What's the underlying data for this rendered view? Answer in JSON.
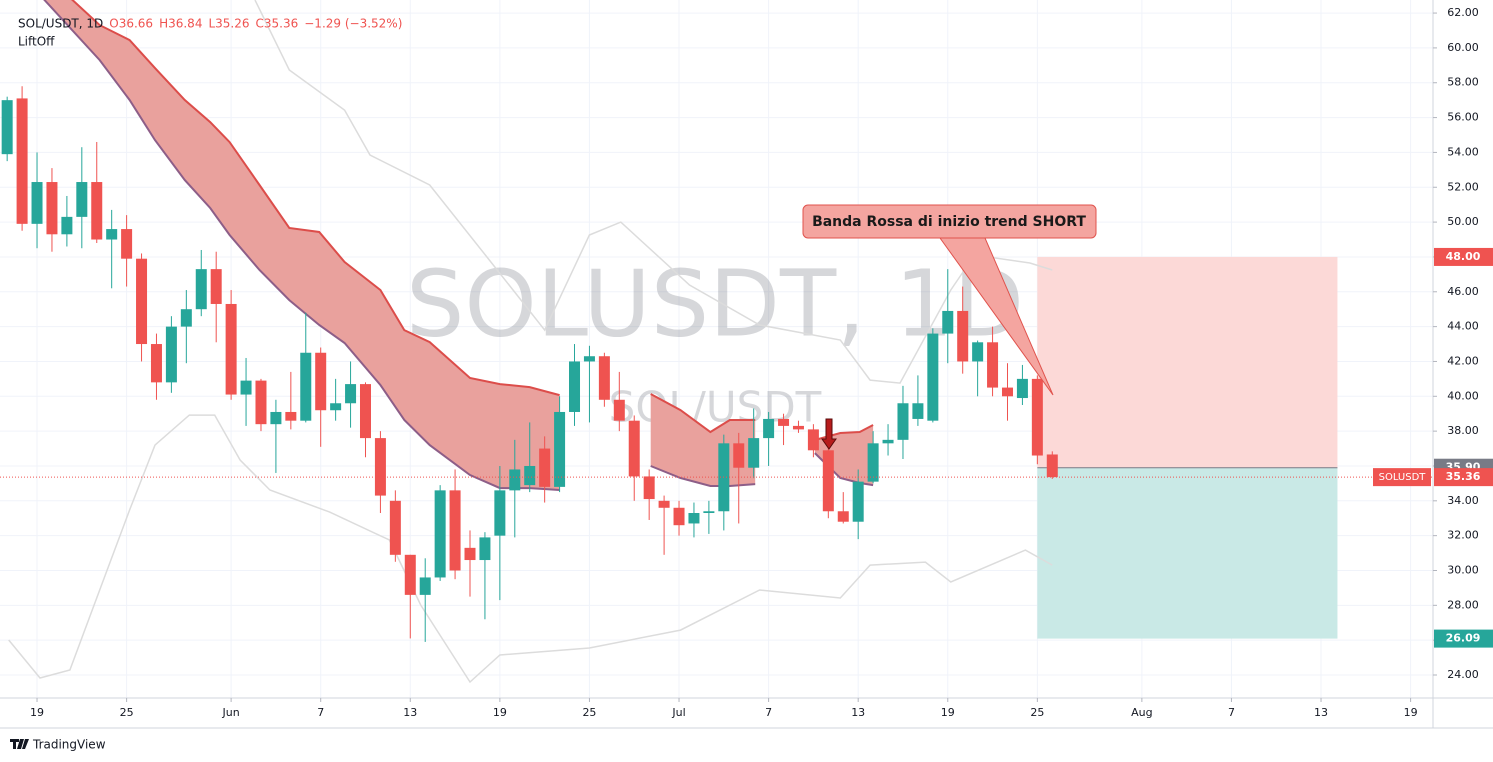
{
  "chart_data": {
    "type": "candlestick",
    "title": "SOL/USDT, 1D",
    "header": [
      "O36.66",
      "H36.84",
      "L35.26",
      "C35.36",
      "−1.29 (−3.52%)"
    ],
    "indicator": "LiftOff",
    "watermark": "SOLUSDT, 1D",
    "watermark_2": "SOL/USDT",
    "annotation": "Banda Rossa di inizio trend SHORT",
    "footer": "TradingView",
    "up_color": "#26a69a",
    "down_color": "#ef5350",
    "grid": true,
    "xlim": [
      -2.48,
      93.5
    ],
    "ylim": [
      22.68,
      62.75
    ],
    "xticks": [
      {
        "value": 0,
        "label": "19"
      },
      {
        "value": 6,
        "label": "25"
      },
      {
        "value": 13,
        "label": "Jun"
      },
      {
        "value": 19,
        "label": "7"
      },
      {
        "value": 25,
        "label": "13"
      },
      {
        "value": 31,
        "label": "19"
      },
      {
        "value": 37,
        "label": "25"
      },
      {
        "value": 43,
        "label": "Jul"
      },
      {
        "value": 49,
        "label": "7"
      },
      {
        "value": 55,
        "label": "13"
      },
      {
        "value": 61,
        "label": "19"
      },
      {
        "value": 67,
        "label": "25"
      },
      {
        "value": 74,
        "label": "Aug"
      },
      {
        "value": 80,
        "label": "7"
      },
      {
        "value": 86,
        "label": "13"
      },
      {
        "value": 92,
        "label": "19"
      }
    ],
    "yticks": [
      {
        "value": 24,
        "label": "24.00"
      },
      {
        "value": 26,
        "label": "26.00"
      },
      {
        "value": 28,
        "label": "28.00"
      },
      {
        "value": 30,
        "label": "30.00"
      },
      {
        "value": 32,
        "label": "32.00"
      },
      {
        "value": 34,
        "label": "34.00"
      },
      {
        "value": 36,
        "label": "36.00"
      },
      {
        "value": 38,
        "label": "38.00"
      },
      {
        "value": 40,
        "label": "40.00"
      },
      {
        "value": 42,
        "label": "42.00"
      },
      {
        "value": 44,
        "label": "44.00"
      },
      {
        "value": 46,
        "label": "46.00"
      },
      {
        "value": 48,
        "label": "48.00"
      },
      {
        "value": 50,
        "label": "50.00"
      },
      {
        "value": 52,
        "label": "52.00"
      },
      {
        "value": 54,
        "label": "54.00"
      },
      {
        "value": 56,
        "label": "56.00"
      },
      {
        "value": 58,
        "label": "58.00"
      },
      {
        "value": 60,
        "label": "60.00"
      },
      {
        "value": 62,
        "label": "62.00"
      }
    ],
    "x": [
      -2,
      -1,
      0,
      1,
      2,
      3,
      4,
      5,
      6,
      7,
      8,
      9,
      10,
      11,
      12,
      13,
      14,
      15,
      16,
      17,
      18,
      19,
      20,
      21,
      22,
      23,
      24,
      25,
      26,
      27,
      28,
      29,
      30,
      31,
      32,
      33,
      34,
      35,
      36,
      37,
      38,
      39,
      40,
      41,
      42,
      43,
      44,
      45,
      46,
      47,
      48,
      49,
      50,
      51,
      52,
      53,
      54,
      55,
      56,
      57,
      58,
      59,
      60,
      61,
      62,
      63,
      64,
      65,
      66,
      67,
      68
    ],
    "open": [
      53.9,
      57.1,
      49.9,
      52.3,
      49.3,
      50.3,
      52.3,
      49.0,
      49.6,
      47.9,
      43.0,
      40.8,
      44.0,
      45.0,
      47.3,
      45.3,
      40.1,
      40.9,
      38.4,
      39.1,
      38.6,
      42.5,
      39.2,
      39.6,
      40.7,
      37.6,
      34.0,
      30.9,
      28.6,
      29.6,
      34.6,
      31.3,
      30.6,
      32.0,
      34.6,
      34.9,
      37.0,
      34.8,
      39.1,
      42.0,
      42.3,
      39.8,
      38.6,
      35.4,
      34.0,
      33.6,
      32.7,
      33.3,
      33.4,
      37.3,
      35.9,
      37.6,
      38.7,
      38.3,
      38.1,
      36.9,
      33.4,
      32.8,
      35.1,
      37.3,
      37.5,
      38.7,
      38.6,
      43.6,
      44.9,
      42.0,
      43.1,
      40.5,
      39.9,
      41.0,
      36.66
    ],
    "high": [
      57.2,
      57.8,
      54.0,
      53.1,
      51.5,
      54.3,
      54.6,
      50.7,
      50.4,
      48.2,
      43.6,
      44.6,
      46.1,
      48.4,
      48.3,
      46.1,
      42.2,
      41.0,
      39.8,
      41.4,
      44.8,
      42.8,
      41.0,
      42.0,
      40.8,
      38.0,
      34.6,
      30.9,
      30.7,
      34.9,
      35.8,
      32.3,
      32.2,
      36.0,
      37.5,
      38.5,
      37.7,
      40.0,
      43.0,
      42.9,
      42.5,
      41.4,
      38.9,
      35.8,
      34.3,
      34.0,
      33.9,
      34.0,
      37.8,
      37.9,
      39.3,
      39.1,
      39.0,
      38.6,
      38.4,
      37.5,
      34.5,
      35.8,
      38.0,
      38.4,
      40.6,
      41.2,
      43.9,
      47.3,
      46.3,
      43.2,
      44.0,
      41.9,
      41.8,
      41.2,
      36.84
    ],
    "low": [
      53.5,
      49.5,
      48.5,
      48.3,
      48.6,
      48.5,
      48.8,
      46.2,
      46.3,
      42.0,
      39.8,
      40.2,
      41.9,
      44.6,
      43.1,
      39.8,
      38.3,
      38.0,
      35.6,
      38.1,
      38.5,
      37.1,
      38.6,
      38.2,
      36.5,
      33.3,
      30.5,
      26.1,
      25.9,
      29.4,
      29.5,
      28.5,
      27.2,
      28.3,
      31.9,
      34.5,
      33.9,
      34.5,
      38.3,
      38.5,
      39.4,
      38.0,
      34.0,
      32.9,
      30.9,
      32.0,
      31.9,
      32.1,
      32.3,
      32.7,
      35.3,
      36.0,
      37.2,
      37.9,
      36.5,
      33.0,
      32.7,
      31.8,
      35.0,
      36.6,
      36.4,
      38.3,
      38.5,
      41.9,
      41.3,
      40.0,
      40.0,
      38.6,
      39.5,
      36.1,
      35.26
    ],
    "close": [
      57.0,
      49.9,
      52.3,
      49.3,
      50.3,
      52.3,
      49.0,
      49.6,
      47.9,
      43.0,
      40.8,
      44.0,
      45.0,
      47.3,
      45.3,
      40.1,
      40.9,
      38.4,
      39.1,
      38.6,
      42.5,
      39.2,
      39.6,
      40.7,
      37.6,
      34.3,
      30.9,
      28.6,
      29.6,
      34.6,
      30.0,
      30.6,
      31.9,
      34.6,
      35.8,
      36.0,
      34.8,
      39.1,
      42.0,
      42.3,
      39.8,
      38.6,
      35.4,
      34.1,
      33.6,
      32.6,
      33.3,
      33.4,
      37.3,
      35.9,
      37.6,
      38.7,
      38.3,
      38.1,
      36.9,
      33.4,
      32.8,
      35.1,
      37.3,
      37.5,
      39.6,
      39.6,
      43.6,
      44.9,
      42.0,
      43.1,
      40.5,
      40.0,
      41.0,
      36.6,
      35.36
    ],
    "ribbon_fill": "#e9a19d",
    "ribbon_upper_color": "#dc4d4a",
    "ribbon_lower_color": "#8d5e88",
    "ribbons": [
      {
        "x": [
          0.2,
          4.2,
          6.2,
          7.9,
          9.9,
          11.6,
          12.9,
          14.9,
          16.9,
          18.9,
          20.6,
          23.0,
          24.6,
          26.3,
          29.0,
          31.0,
          33.0,
          35.0
        ],
        "upper": [
          64.47,
          61.31,
          60.45,
          58.84,
          57.01,
          55.74,
          54.59,
          52.13,
          49.66,
          49.43,
          47.71,
          46.1,
          43.8,
          43.11,
          41.05,
          40.7,
          40.53,
          40.07
        ],
        "lower": [
          63.03,
          59.3,
          57.01,
          54.71,
          52.41,
          50.81,
          49.26,
          47.25,
          45.52,
          44.09,
          43.06,
          40.65,
          38.64,
          37.2,
          35.48,
          34.73,
          34.73,
          34.62
        ]
      },
      {
        "x": [
          41.1,
          43.1,
          45.1,
          46.4,
          48.1
        ],
        "upper": [
          40.13,
          39.21,
          37.95,
          38.64,
          38.64
        ],
        "lower": [
          36.0,
          35.31,
          34.85,
          34.85,
          34.96
        ]
      },
      {
        "x": [
          52.1,
          53.8,
          55.1,
          56.0
        ],
        "upper": [
          37.49,
          37.89,
          37.95,
          38.35
        ],
        "lower": [
          36.74,
          35.31,
          35.02,
          34.9
        ]
      }
    ],
    "band_color": "#dcdcdc",
    "bands": [
      {
        "x": [
          14.6,
          16.9,
          20.6,
          22.3,
          26.3,
          30.3,
          34.0,
          37.0,
          39.1,
          43.7,
          48.4,
          53.8,
          55.8,
          57.8,
          61.2,
          62.8,
          66.5,
          68.0
        ],
        "values": [
          62.75,
          58.73,
          56.43,
          53.85,
          52.13,
          47.82,
          43.8,
          49.26,
          50.0,
          46.39,
          44.09,
          43.23,
          40.93,
          40.76,
          46.1,
          48.11,
          47.65,
          47.25
        ]
      },
      {
        "x": [
          -1.9,
          0.2,
          2.2,
          4.2,
          6.2,
          7.9,
          10.2,
          11.9,
          13.6,
          15.6,
          19.6,
          23.6,
          25.7,
          29.0,
          31.0,
          37.0,
          43.1,
          48.4,
          53.8,
          55.8,
          59.5,
          61.2,
          66.2,
          68.0
        ],
        "values": [
          26.01,
          23.83,
          24.29,
          28.88,
          33.47,
          37.2,
          38.92,
          38.92,
          36.34,
          34.62,
          33.35,
          31.75,
          28.02,
          23.6,
          25.15,
          25.55,
          26.58,
          28.88,
          28.42,
          30.31,
          30.48,
          29.34,
          31.17,
          30.31
        ]
      }
    ],
    "position": {
      "start": 67,
      "end": 87.1,
      "stop_fill": "#fcd9d7",
      "target_fill": "#c9e9e6"
    },
    "levels": [
      {
        "value": 48,
        "label": "48.00",
        "color": "#ef5350"
      },
      {
        "value": 35.9,
        "label": "35.90",
        "color": "#787b86"
      },
      {
        "value": 26.09,
        "label": "26.09",
        "color": "#26a69a"
      }
    ],
    "last_price": {
      "name": "SOLUSDT",
      "value": 35.36,
      "label": "35.36",
      "color": "#ef5350"
    }
  }
}
